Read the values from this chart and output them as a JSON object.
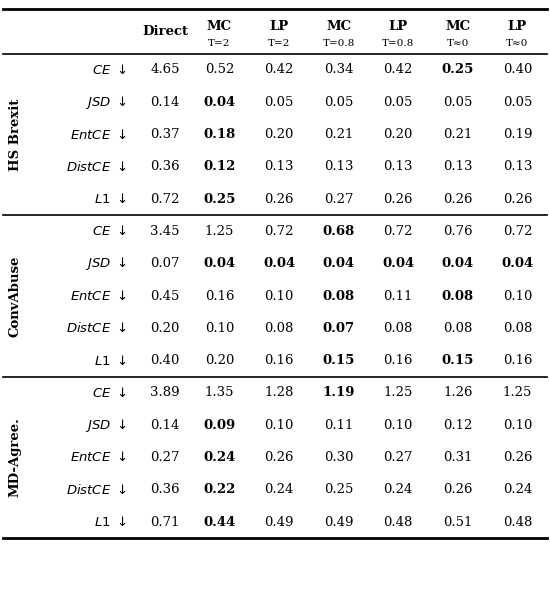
{
  "col_headers_top": [
    "Direct",
    "MC",
    "LP",
    "MC",
    "LP",
    "MC",
    "LP"
  ],
  "col_headers_sub": [
    "",
    "T=2",
    "T=2",
    "T=0.8",
    "T=0.8",
    "T≈0",
    "T≈0"
  ],
  "sections": [
    {
      "label": "HS Brexit",
      "rows": [
        {
          "metric": "CE",
          "values": [
            "4.65",
            "0.52",
            "0.42",
            "0.34",
            "0.42",
            "0.25",
            "0.40"
          ],
          "bold": [
            false,
            false,
            false,
            false,
            false,
            true,
            false
          ]
        },
        {
          "metric": "JSD",
          "values": [
            "0.14",
            "0.04",
            "0.05",
            "0.05",
            "0.05",
            "0.05",
            "0.05"
          ],
          "bold": [
            false,
            true,
            false,
            false,
            false,
            false,
            false
          ]
        },
        {
          "metric": "EntCE",
          "values": [
            "0.37",
            "0.18",
            "0.20",
            "0.21",
            "0.20",
            "0.21",
            "0.19"
          ],
          "bold": [
            false,
            true,
            false,
            false,
            false,
            false,
            false
          ]
        },
        {
          "metric": "DistCE",
          "values": [
            "0.36",
            "0.12",
            "0.13",
            "0.13",
            "0.13",
            "0.13",
            "0.13"
          ],
          "bold": [
            false,
            true,
            false,
            false,
            false,
            false,
            false
          ]
        },
        {
          "metric": "L1",
          "values": [
            "0.72",
            "0.25",
            "0.26",
            "0.27",
            "0.26",
            "0.26",
            "0.26"
          ],
          "bold": [
            false,
            true,
            false,
            false,
            false,
            false,
            false
          ]
        }
      ]
    },
    {
      "label": "ConvAbuse",
      "rows": [
        {
          "metric": "CE",
          "values": [
            "3.45",
            "1.25",
            "0.72",
            "0.68",
            "0.72",
            "0.76",
            "0.72"
          ],
          "bold": [
            false,
            false,
            false,
            true,
            false,
            false,
            false
          ]
        },
        {
          "metric": "JSD",
          "values": [
            "0.07",
            "0.04",
            "0.04",
            "0.04",
            "0.04",
            "0.04",
            "0.04"
          ],
          "bold": [
            false,
            true,
            true,
            true,
            true,
            true,
            true
          ]
        },
        {
          "metric": "EntCE",
          "values": [
            "0.45",
            "0.16",
            "0.10",
            "0.08",
            "0.11",
            "0.08",
            "0.10"
          ],
          "bold": [
            false,
            false,
            false,
            true,
            false,
            true,
            false
          ]
        },
        {
          "metric": "DistCE",
          "values": [
            "0.20",
            "0.10",
            "0.08",
            "0.07",
            "0.08",
            "0.08",
            "0.08"
          ],
          "bold": [
            false,
            false,
            false,
            true,
            false,
            false,
            false
          ]
        },
        {
          "metric": "L1",
          "values": [
            "0.40",
            "0.20",
            "0.16",
            "0.15",
            "0.16",
            "0.15",
            "0.16"
          ],
          "bold": [
            false,
            false,
            false,
            true,
            false,
            true,
            false
          ]
        }
      ]
    },
    {
      "label": "MD-Agree.",
      "rows": [
        {
          "metric": "CE",
          "values": [
            "3.89",
            "1.35",
            "1.28",
            "1.19",
            "1.25",
            "1.26",
            "1.25"
          ],
          "bold": [
            false,
            false,
            false,
            true,
            false,
            false,
            false
          ]
        },
        {
          "metric": "JSD",
          "values": [
            "0.14",
            "0.09",
            "0.10",
            "0.11",
            "0.10",
            "0.12",
            "0.10"
          ],
          "bold": [
            false,
            true,
            false,
            false,
            false,
            false,
            false
          ]
        },
        {
          "metric": "EntCE",
          "values": [
            "0.27",
            "0.24",
            "0.26",
            "0.30",
            "0.27",
            "0.31",
            "0.26"
          ],
          "bold": [
            false,
            true,
            false,
            false,
            false,
            false,
            false
          ]
        },
        {
          "metric": "DistCE",
          "values": [
            "0.36",
            "0.22",
            "0.24",
            "0.25",
            "0.24",
            "0.26",
            "0.24"
          ],
          "bold": [
            false,
            true,
            false,
            false,
            false,
            false,
            false
          ]
        },
        {
          "metric": "L1",
          "values": [
            "0.71",
            "0.44",
            "0.49",
            "0.49",
            "0.48",
            "0.51",
            "0.48"
          ],
          "bold": [
            false,
            true,
            false,
            false,
            false,
            false,
            false
          ]
        }
      ]
    }
  ],
  "figsize": [
    5.5,
    5.98
  ],
  "dpi": 100
}
